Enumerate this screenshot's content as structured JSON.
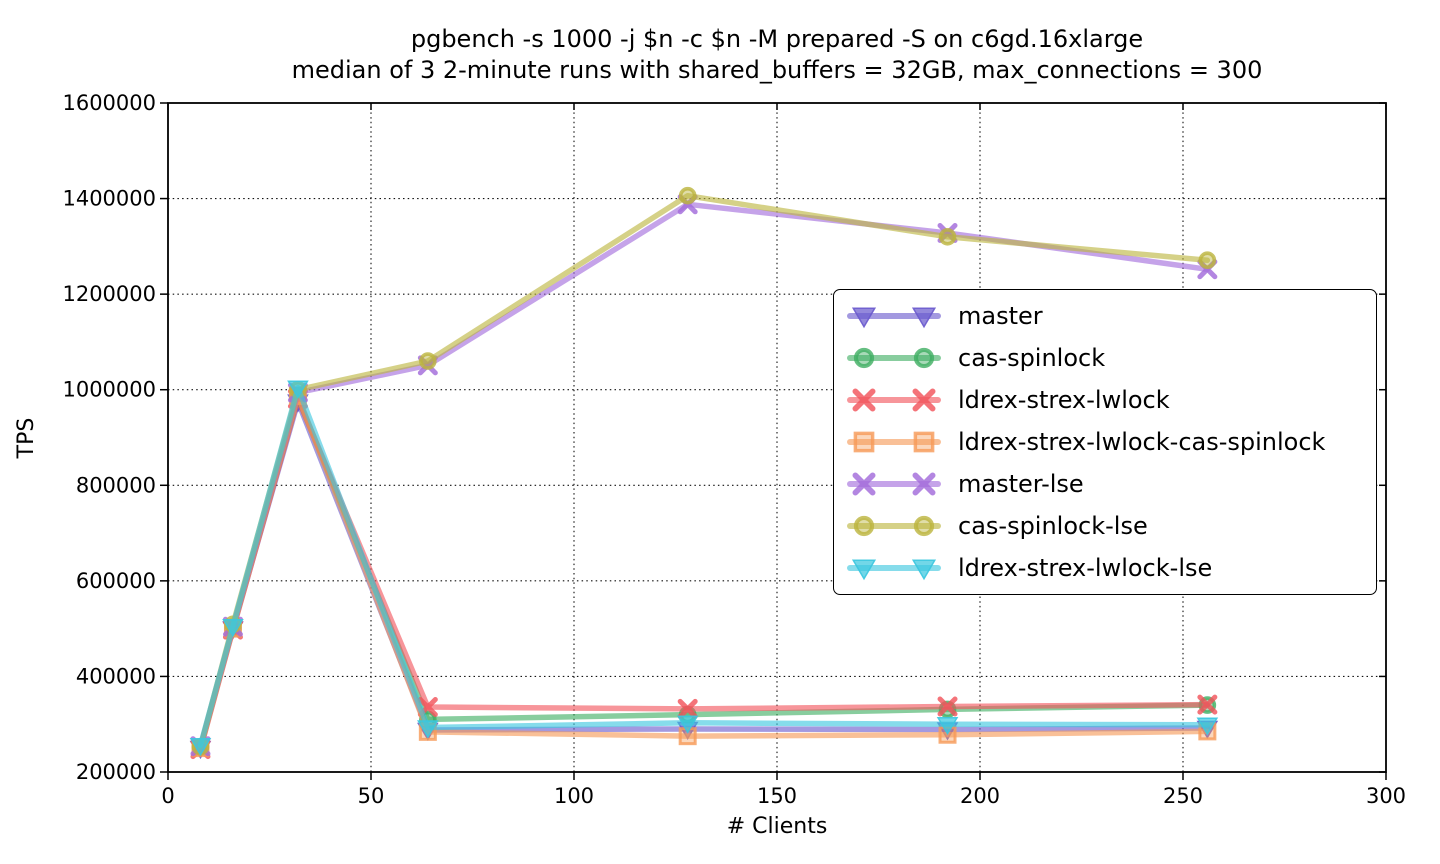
{
  "chart_data": {
    "type": "line",
    "title": "pgbench -s 1000 -j $n -c $n -M prepared -S on c6gd.16xlarge",
    "subtitle": "median of 3 2-minute runs with shared_buffers = 32GB, max_connections = 300",
    "xlabel": "# Clients",
    "ylabel": "TPS",
    "xlim": [
      0,
      300
    ],
    "ylim": [
      200000,
      1600000
    ],
    "xticks": [
      0,
      50,
      100,
      150,
      200,
      250,
      300
    ],
    "yticks": [
      200000,
      400000,
      600000,
      800000,
      1000000,
      1200000,
      1400000,
      1600000
    ],
    "grid": "dotted",
    "legend_position": "upper-right-inset",
    "x": [
      8,
      16,
      32,
      64,
      128,
      192,
      256
    ],
    "series": [
      {
        "name": "master",
        "color": "#6A5ACD",
        "marker": "triangle-down",
        "values": [
          250000,
          500000,
          975000,
          288000,
          290000,
          289000,
          292000
        ]
      },
      {
        "name": "cas-spinlock",
        "color": "#3FAE62",
        "marker": "circle",
        "values": [
          252000,
          501000,
          984000,
          310000,
          320000,
          331000,
          340000
        ]
      },
      {
        "name": "ldrex-strex-lwlock",
        "color": "#F2545C",
        "marker": "x",
        "values": [
          248000,
          498000,
          981000,
          336000,
          332000,
          337000,
          341000
        ]
      },
      {
        "name": "ldrex-strex-lwlock-cas-spinlock",
        "color": "#F69A57",
        "marker": "square",
        "values": [
          250000,
          500000,
          987000,
          284000,
          275000,
          278000,
          285000
        ]
      },
      {
        "name": "master-lse",
        "color": "#A26BDB",
        "marker": "x",
        "values": [
          254000,
          504000,
          994000,
          1051000,
          1388000,
          1328000,
          1252000
        ]
      },
      {
        "name": "cas-spinlock-lse",
        "color": "#BBB43D",
        "marker": "circle",
        "values": [
          253000,
          509000,
          1000000,
          1060000,
          1406000,
          1320000,
          1271000
        ]
      },
      {
        "name": "ldrex-strex-lwlock-lse",
        "color": "#3BC7DF",
        "marker": "triangle-down",
        "values": [
          256000,
          505000,
          1004000,
          293000,
          303000,
          300000,
          299000
        ]
      }
    ]
  }
}
